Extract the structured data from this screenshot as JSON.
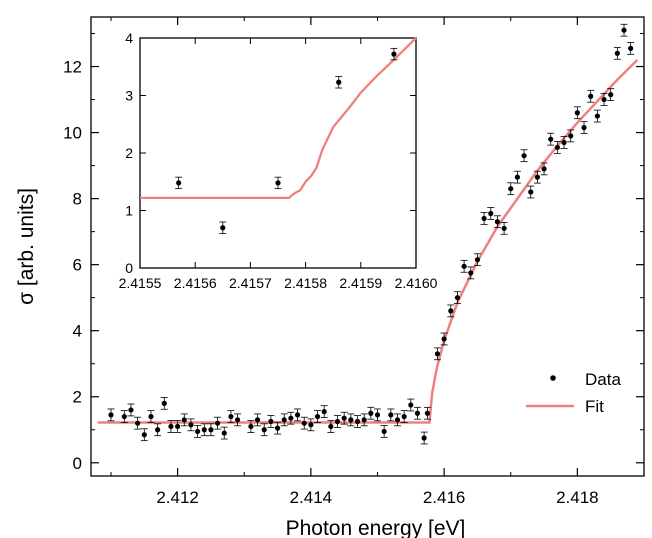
{
  "chart_data": [
    {
      "type": "scatter",
      "xlabel": "Photon energy [eV]",
      "ylabel": "σ [arb. units]",
      "xlim": [
        2.4107,
        2.419
      ],
      "ylim": [
        -0.4,
        13.5
      ],
      "xticks": [
        "2.412",
        "2.414",
        "2.416",
        "2.418"
      ],
      "yticks": [
        "0",
        "2",
        "4",
        "6",
        "8",
        "10",
        "12"
      ],
      "grid": false,
      "legend": {
        "position": "bottom-right",
        "entries": [
          {
            "label": "Data",
            "kind": "marker",
            "color": "#000000"
          },
          {
            "label": "Fit",
            "kind": "line",
            "color": "#f08080"
          }
        ]
      },
      "series": [
        {
          "name": "Data",
          "kind": "points_with_errorbars",
          "color": "#000000",
          "x": [
            2.411,
            2.4112,
            2.4113,
            2.4114,
            2.4115,
            2.4116,
            2.4117,
            2.4118,
            2.4119,
            2.412,
            2.4121,
            2.4122,
            2.4123,
            2.4124,
            2.4125,
            2.4126,
            2.4127,
            2.4128,
            2.4129,
            2.4131,
            2.4132,
            2.4133,
            2.4134,
            2.4135,
            2.4136,
            2.4137,
            2.4138,
            2.4139,
            2.414,
            2.4141,
            2.4142,
            2.4143,
            2.4144,
            2.4145,
            2.4146,
            2.4147,
            2.4148,
            2.4149,
            2.415,
            2.4151,
            2.4152,
            2.4153,
            2.4154,
            2.4155,
            2.4156,
            2.4157,
            2.41575,
            2.4159,
            2.416,
            2.4161,
            2.4162,
            2.4163,
            2.4164,
            2.4165,
            2.4166,
            2.4167,
            2.4168,
            2.4169,
            2.417,
            2.4171,
            2.4172,
            2.4173,
            2.4174,
            2.4175,
            2.4176,
            2.4177,
            2.4178,
            2.4179,
            2.418,
            2.4181,
            2.4182,
            2.4183,
            2.4184,
            2.4185,
            2.4186,
            2.4187,
            2.4188
          ],
          "y": [
            1.45,
            1.4,
            1.6,
            1.2,
            0.85,
            1.4,
            1.0,
            1.8,
            1.1,
            1.1,
            1.3,
            1.15,
            0.95,
            1.0,
            1.0,
            1.2,
            0.9,
            1.4,
            1.3,
            1.1,
            1.3,
            1.0,
            1.25,
            1.05,
            1.3,
            1.35,
            1.45,
            1.2,
            1.15,
            1.4,
            1.55,
            1.1,
            1.25,
            1.35,
            1.3,
            1.25,
            1.3,
            1.5,
            1.45,
            0.95,
            1.45,
            1.3,
            1.4,
            1.75,
            1.5,
            0.75,
            1.5,
            3.3,
            3.75,
            4.6,
            5.0,
            5.95,
            5.75,
            6.15,
            7.4,
            7.55,
            7.3,
            7.1,
            8.3,
            8.65,
            9.3,
            8.2,
            8.65,
            8.9,
            9.8,
            9.55,
            9.7,
            9.9,
            10.6,
            10.15,
            11.1,
            10.5,
            11.0,
            11.15,
            12.4,
            13.1,
            12.55
          ],
          "yerr": 0.18
        },
        {
          "name": "Fit",
          "kind": "line",
          "color": "#f08080",
          "x": [
            2.4108,
            2.415,
            2.41578,
            2.41582,
            2.41586,
            2.4159,
            2.416,
            2.4162,
            2.4165,
            2.4168,
            2.4171,
            2.4174,
            2.4177,
            2.418,
            2.4183,
            2.4186,
            2.4189
          ],
          "y": [
            1.22,
            1.22,
            1.22,
            2.1,
            2.55,
            2.95,
            3.7,
            4.85,
            6.1,
            7.15,
            8.0,
            8.85,
            9.6,
            10.3,
            10.95,
            11.6,
            12.2
          ]
        }
      ]
    },
    {
      "type": "scatter",
      "title": "",
      "xlim": [
        2.4155,
        2.416
      ],
      "ylim": [
        0,
        4
      ],
      "xticks": [
        "2.4155",
        "2.4156",
        "2.4157",
        "2.4158",
        "2.4159",
        "2.4160"
      ],
      "yticks": [
        "0",
        "1",
        "2",
        "3",
        "4"
      ],
      "series": [
        {
          "name": "Data",
          "color": "#000000",
          "x": [
            2.41557,
            2.41565,
            2.41575,
            2.41586,
            2.41596
          ],
          "y": [
            1.48,
            0.7,
            1.48,
            3.23,
            3.72
          ],
          "yerr": 0.1
        },
        {
          "name": "Fit",
          "color": "#f08080",
          "x": [
            2.4155,
            2.41577,
            2.41578,
            2.41579,
            2.4158,
            2.41581,
            2.41582,
            2.41583,
            2.41585,
            2.41588,
            2.4159,
            2.41593,
            2.41596,
            2.416
          ],
          "y": [
            1.22,
            1.22,
            1.3,
            1.35,
            1.5,
            1.6,
            1.75,
            2.05,
            2.45,
            2.8,
            3.05,
            3.35,
            3.62,
            4.0
          ]
        }
      ]
    }
  ]
}
